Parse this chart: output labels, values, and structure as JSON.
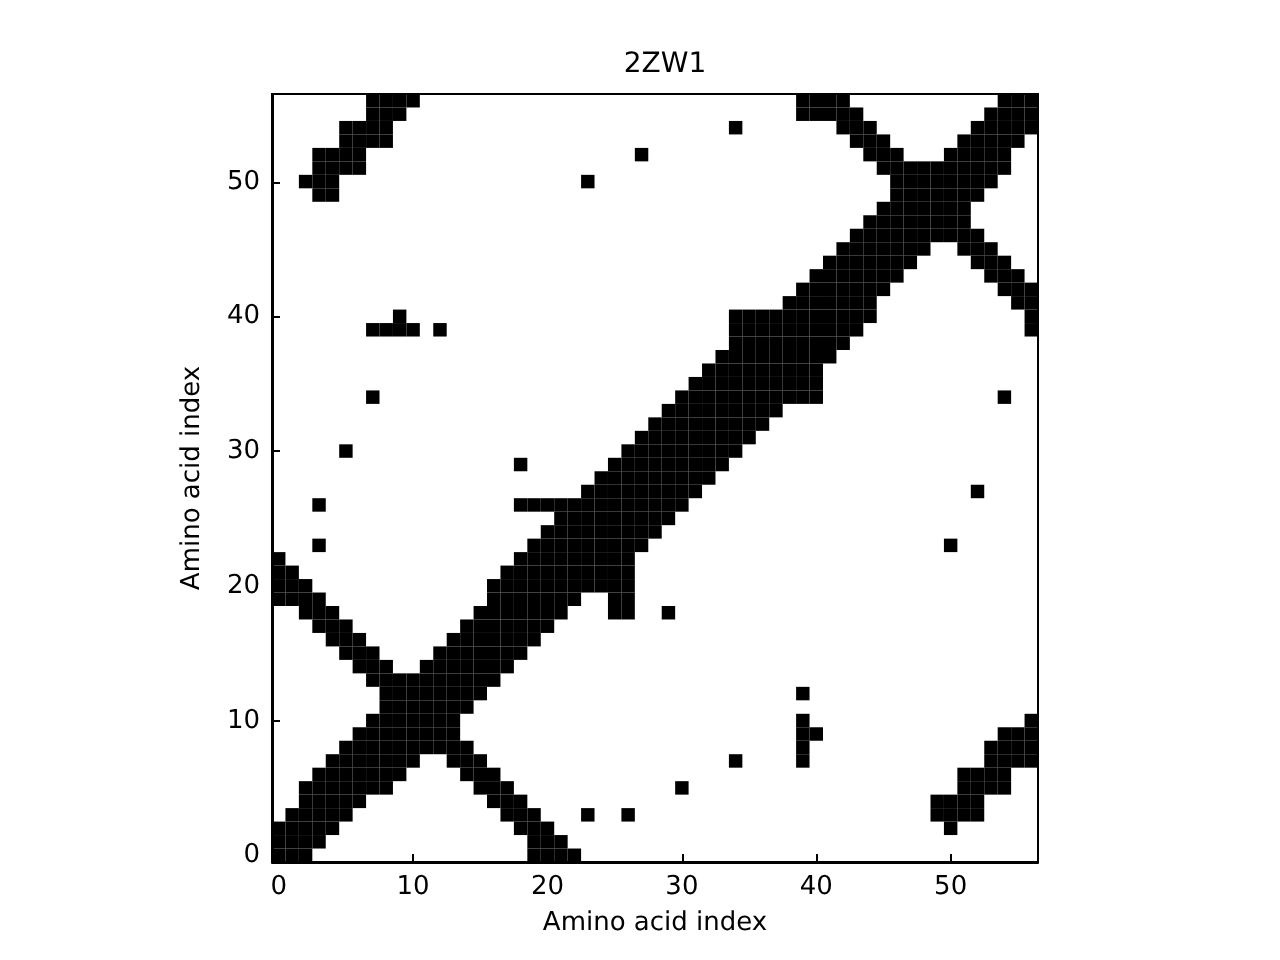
{
  "chart_data": {
    "type": "scatter",
    "title": "2ZW1",
    "xlabel": "Amino acid index",
    "ylabel": "Amino acid index",
    "marker": "square",
    "color": "#000000",
    "grid": false,
    "xlim": [
      -0.5,
      56.5
    ],
    "ylim": [
      -0.5,
      56.5
    ],
    "xticks": [
      0,
      10,
      20,
      30,
      40,
      50
    ],
    "yticks": [
      0,
      10,
      20,
      30,
      40,
      50
    ],
    "x": [
      0,
      1,
      2,
      19,
      20,
      21,
      22,
      0,
      1,
      2,
      3,
      19,
      20,
      21,
      0,
      1,
      2,
      3,
      4,
      18,
      19,
      20,
      50,
      1,
      2,
      3,
      4,
      5,
      17,
      18,
      19,
      23,
      26,
      49,
      50,
      51,
      52,
      2,
      3,
      4,
      5,
      6,
      16,
      17,
      18,
      49,
      50,
      51,
      52,
      2,
      3,
      4,
      5,
      6,
      7,
      8,
      15,
      16,
      17,
      30,
      51,
      52,
      53,
      54,
      3,
      4,
      5,
      6,
      7,
      8,
      9,
      14,
      15,
      16,
      51,
      52,
      53,
      54,
      4,
      5,
      6,
      7,
      8,
      9,
      10,
      13,
      14,
      15,
      34,
      39,
      53,
      54,
      55,
      56,
      5,
      6,
      7,
      8,
      9,
      10,
      11,
      12,
      13,
      14,
      39,
      53,
      54,
      55,
      56,
      6,
      7,
      8,
      9,
      10,
      11,
      12,
      13,
      39,
      40,
      54,
      55,
      56,
      7,
      8,
      9,
      10,
      11,
      12,
      13,
      39,
      56,
      8,
      9,
      10,
      11,
      12,
      13,
      14,
      8,
      9,
      10,
      11,
      12,
      13,
      14,
      15,
      39,
      7,
      8,
      9,
      10,
      11,
      12,
      13,
      14,
      15,
      16,
      6,
      7,
      8,
      11,
      12,
      13,
      14,
      15,
      16,
      17,
      5,
      6,
      7,
      12,
      13,
      14,
      15,
      16,
      17,
      18,
      4,
      5,
      6,
      13,
      14,
      15,
      16,
      17,
      18,
      19,
      3,
      4,
      5,
      14,
      15,
      16,
      17,
      18,
      19,
      20,
      2,
      3,
      4,
      15,
      16,
      17,
      18,
      19,
      20,
      21,
      25,
      26,
      29,
      0,
      1,
      2,
      3,
      16,
      17,
      18,
      19,
      20,
      21,
      22,
      25,
      26,
      0,
      1,
      2,
      16,
      17,
      18,
      19,
      20,
      21,
      22,
      23,
      24,
      25,
      26,
      0,
      1,
      17,
      18,
      19,
      20,
      21,
      22,
      23,
      24,
      25,
      26,
      0,
      18,
      19,
      20,
      21,
      22,
      23,
      24,
      25,
      26,
      3,
      19,
      20,
      21,
      22,
      23,
      24,
      25,
      26,
      27,
      50,
      20,
      21,
      22,
      23,
      24,
      25,
      26,
      27,
      28,
      21,
      22,
      23,
      24,
      25,
      26,
      27,
      28,
      29,
      3,
      18,
      19,
      20,
      21,
      22,
      23,
      24,
      25,
      26,
      27,
      28,
      29,
      30,
      23,
      24,
      25,
      26,
      27,
      28,
      29,
      30,
      31,
      52,
      24,
      25,
      26,
      27,
      28,
      29,
      30,
      31,
      32,
      18,
      25,
      26,
      27,
      28,
      29,
      30,
      31,
      32,
      33,
      5,
      26,
      27,
      28,
      29,
      30,
      31,
      32,
      33,
      34,
      27,
      28,
      29,
      30,
      31,
      32,
      33,
      34,
      35,
      28,
      29,
      30,
      31,
      32,
      33,
      34,
      35,
      36,
      29,
      30,
      31,
      32,
      33,
      34,
      35,
      36,
      37,
      7,
      30,
      31,
      32,
      33,
      34,
      35,
      36,
      37,
      38,
      39,
      40,
      54,
      31,
      32,
      33,
      34,
      35,
      36,
      37,
      38,
      39,
      40,
      32,
      33,
      34,
      35,
      36,
      37,
      38,
      39,
      40,
      33,
      34,
      35,
      36,
      37,
      38,
      39,
      40,
      41,
      34,
      35,
      36,
      37,
      38,
      39,
      40,
      41,
      42,
      7,
      8,
      9,
      10,
      12,
      34,
      35,
      36,
      37,
      38,
      39,
      40,
      41,
      42,
      43,
      56,
      9,
      34,
      35,
      36,
      37,
      38,
      39,
      40,
      41,
      42,
      43,
      44,
      56,
      38,
      39,
      40,
      41,
      42,
      43,
      44,
      55,
      56,
      39,
      40,
      41,
      42,
      43,
      44,
      45,
      54,
      55,
      56,
      40,
      41,
      42,
      43,
      44,
      45,
      46,
      53,
      54,
      55,
      41,
      42,
      43,
      44,
      45,
      46,
      47,
      52,
      53,
      54,
      42,
      43,
      44,
      45,
      46,
      47,
      48,
      51,
      52,
      53,
      43,
      44,
      45,
      46,
      47,
      48,
      49,
      50,
      51,
      52,
      44,
      45,
      46,
      47,
      48,
      49,
      50,
      51,
      45,
      46,
      47,
      48,
      49,
      50,
      51,
      3,
      4,
      46,
      47,
      48,
      49,
      50,
      51,
      52,
      2,
      3,
      4,
      23,
      46,
      47,
      48,
      49,
      50,
      51,
      52,
      53,
      3,
      4,
      5,
      6,
      45,
      46,
      47,
      48,
      49,
      50,
      51,
      52,
      53,
      54,
      3,
      4,
      5,
      6,
      27,
      44,
      45,
      46,
      50,
      51,
      52,
      53,
      54,
      5,
      6,
      7,
      8,
      43,
      44,
      45,
      51,
      52,
      53,
      54,
      55,
      5,
      6,
      7,
      8,
      34,
      42,
      43,
      44,
      52,
      53,
      54,
      55,
      56,
      7,
      8,
      9,
      39,
      40,
      41,
      42,
      43,
      53,
      54,
      55,
      56,
      7,
      8,
      9,
      10,
      39,
      40,
      41,
      42,
      54,
      55,
      56
    ],
    "values": [
      0,
      0,
      0,
      0,
      0,
      0,
      0,
      1,
      1,
      1,
      1,
      1,
      1,
      1,
      2,
      2,
      2,
      2,
      2,
      2,
      2,
      2,
      2,
      3,
      3,
      3,
      3,
      3,
      3,
      3,
      3,
      3,
      3,
      3,
      3,
      3,
      3,
      4,
      4,
      4,
      4,
      4,
      4,
      4,
      4,
      4,
      4,
      4,
      4,
      5,
      5,
      5,
      5,
      5,
      5,
      5,
      5,
      5,
      5,
      5,
      5,
      5,
      5,
      5,
      6,
      6,
      6,
      6,
      6,
      6,
      6,
      6,
      6,
      6,
      6,
      6,
      6,
      6,
      7,
      7,
      7,
      7,
      7,
      7,
      7,
      7,
      7,
      7,
      7,
      7,
      7,
      7,
      7,
      7,
      8,
      8,
      8,
      8,
      8,
      8,
      8,
      8,
      8,
      8,
      8,
      8,
      8,
      8,
      8,
      9,
      9,
      9,
      9,
      9,
      9,
      9,
      9,
      9,
      9,
      9,
      9,
      9,
      10,
      10,
      10,
      10,
      10,
      10,
      10,
      10,
      10,
      11,
      11,
      11,
      11,
      11,
      11,
      11,
      12,
      12,
      12,
      12,
      12,
      12,
      12,
      12,
      12,
      13,
      13,
      13,
      13,
      13,
      13,
      13,
      13,
      13,
      13,
      14,
      14,
      14,
      14,
      14,
      14,
      14,
      14,
      14,
      14,
      15,
      15,
      15,
      15,
      15,
      15,
      15,
      15,
      15,
      15,
      16,
      16,
      16,
      16,
      16,
      16,
      16,
      16,
      16,
      16,
      17,
      17,
      17,
      17,
      17,
      17,
      17,
      17,
      17,
      17,
      18,
      18,
      18,
      18,
      18,
      18,
      18,
      18,
      18,
      18,
      18,
      18,
      18,
      19,
      19,
      19,
      19,
      19,
      19,
      19,
      19,
      19,
      19,
      19,
      19,
      19,
      20,
      20,
      20,
      20,
      20,
      20,
      20,
      20,
      20,
      20,
      20,
      20,
      20,
      20,
      21,
      21,
      21,
      21,
      21,
      21,
      21,
      21,
      21,
      21,
      21,
      21,
      22,
      22,
      22,
      22,
      22,
      22,
      22,
      22,
      22,
      22,
      23,
      23,
      23,
      23,
      23,
      23,
      23,
      23,
      23,
      23,
      23,
      24,
      24,
      24,
      24,
      24,
      24,
      24,
      24,
      24,
      25,
      25,
      25,
      25,
      25,
      25,
      25,
      25,
      25,
      26,
      26,
      26,
      26,
      26,
      26,
      26,
      26,
      26,
      26,
      26,
      26,
      26,
      26,
      27,
      27,
      27,
      27,
      27,
      27,
      27,
      27,
      27,
      27,
      28,
      28,
      28,
      28,
      28,
      28,
      28,
      28,
      28,
      29,
      29,
      29,
      29,
      29,
      29,
      29,
      29,
      29,
      29,
      30,
      30,
      30,
      30,
      30,
      30,
      30,
      30,
      30,
      30,
      31,
      31,
      31,
      31,
      31,
      31,
      31,
      31,
      31,
      32,
      32,
      32,
      32,
      32,
      32,
      32,
      32,
      32,
      33,
      33,
      33,
      33,
      33,
      33,
      33,
      33,
      33,
      34,
      34,
      34,
      34,
      34,
      34,
      34,
      34,
      34,
      34,
      34,
      34,
      34,
      35,
      35,
      35,
      35,
      35,
      35,
      35,
      35,
      35,
      35,
      36,
      36,
      36,
      36,
      36,
      36,
      36,
      36,
      36,
      37,
      37,
      37,
      37,
      37,
      37,
      37,
      37,
      37,
      38,
      38,
      38,
      38,
      38,
      38,
      38,
      38,
      38,
      39,
      39,
      39,
      39,
      39,
      39,
      39,
      39,
      39,
      39,
      39,
      39,
      39,
      39,
      39,
      39,
      40,
      40,
      40,
      40,
      40,
      40,
      40,
      40,
      40,
      40,
      40,
      40,
      40,
      41,
      41,
      41,
      41,
      41,
      41,
      41,
      41,
      41,
      42,
      42,
      42,
      42,
      42,
      42,
      42,
      42,
      42,
      42,
      43,
      43,
      43,
      43,
      43,
      43,
      43,
      43,
      43,
      43,
      44,
      44,
      44,
      44,
      44,
      44,
      44,
      44,
      44,
      44,
      45,
      45,
      45,
      45,
      45,
      45,
      45,
      45,
      45,
      45,
      46,
      46,
      46,
      46,
      46,
      46,
      46,
      46,
      46,
      46,
      47,
      47,
      47,
      47,
      47,
      47,
      47,
      47,
      48,
      48,
      48,
      48,
      48,
      48,
      48,
      49,
      49,
      49,
      49,
      49,
      49,
      49,
      49,
      49,
      50,
      50,
      50,
      50,
      50,
      50,
      50,
      50,
      50,
      50,
      50,
      50,
      51,
      51,
      51,
      51,
      51,
      51,
      51,
      51,
      51,
      51,
      51,
      51,
      51,
      51,
      52,
      52,
      52,
      52,
      52,
      52,
      52,
      52,
      52,
      52,
      52,
      52,
      52,
      53,
      53,
      53,
      53,
      53,
      53,
      53,
      53,
      53,
      53,
      53,
      53,
      54,
      54,
      54,
      54,
      54,
      54,
      54,
      54,
      54,
      54,
      54,
      54,
      54,
      55,
      55,
      55,
      55,
      55,
      55,
      55,
      55,
      55,
      55,
      55,
      55,
      56,
      56,
      56,
      56,
      56,
      56,
      56,
      56,
      56,
      56,
      56
    ]
  }
}
